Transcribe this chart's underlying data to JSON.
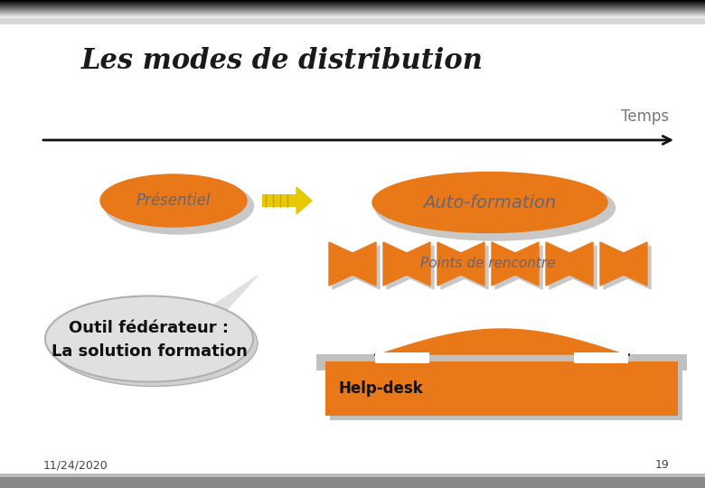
{
  "title": "Les modes de distribution",
  "background_color": "#ffffff",
  "orange_color": "#e87818",
  "shadow_color": "#c8c8c8",
  "arrow_color": "#e8c800",
  "dark_gray": "#666666",
  "temps_label": "Temps",
  "presentiel_label": "Présentiel",
  "auto_formation_label": "Auto-formation",
  "points_rencontre_label": "Points de rencontre",
  "outil_label": "Outil fédérateur :",
  "solution_label": "La solution formation",
  "helpdesk_label": "Help-desk",
  "date_label": "11/24/2020",
  "page_label": "19",
  "fig_w": 7.8,
  "fig_h": 5.4,
  "dpi": 100
}
